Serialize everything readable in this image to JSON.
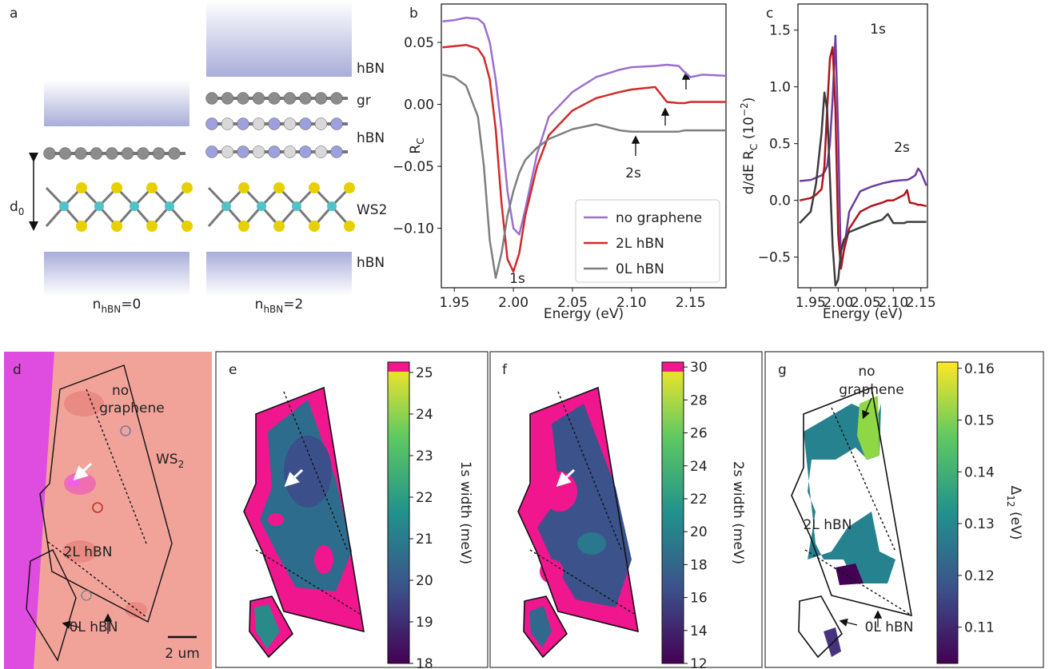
{
  "panel_labels": [
    "a",
    "b",
    "c",
    "d",
    "e",
    "f",
    "g"
  ],
  "panel_a": {
    "layers": [
      "hBN",
      "gr",
      "hBN",
      "WS2",
      "hBN"
    ],
    "spacing": [
      "d",
      "0"
    ],
    "left_stack": [
      "n",
      "hBN",
      "=0"
    ],
    "right_stack": [
      "n",
      "hBN",
      "=2"
    ]
  },
  "panel_d": {
    "labels": [
      "no",
      "graphene",
      "2L hBN",
      "0L hBN"
    ],
    "substrate": [
      "WS",
      "2"
    ],
    "scale_bar": "2 um"
  },
  "panel_g": {
    "labels": [
      "no",
      "graphene",
      "2L hBN",
      "0L hBN"
    ]
  },
  "chart_data": [
    {
      "type": "line",
      "xlabel": "Energy (eV)",
      "ylabel": [
        "R",
        "C"
      ],
      "xlim": [
        1.939,
        2.18
      ],
      "ylim": [
        -0.148,
        0.081
      ],
      "xticks": [
        1.95,
        {
          "value": 2,
          "label": "2.00"
        },
        2.05,
        {
          "value": 2.1,
          "label": "2.10"
        },
        2.15
      ],
      "yticks": [
        0.05,
        {
          "value": 0,
          "label": "0.00"
        },
        {
          "value": -0.05,
          "label": "−0.05"
        },
        {
          "value": -0.1,
          "label": "−0.10"
        }
      ],
      "legend": "lower right",
      "annotations": [
        "1s",
        "2s"
      ],
      "x": [
        1.94,
        1.95,
        1.96,
        1.97,
        1.975,
        1.98,
        1.985,
        1.99,
        1.995,
        2.0,
        2.005,
        2.01,
        2.02,
        2.03,
        2.05,
        2.07,
        2.09,
        2.1,
        2.12,
        2.13,
        2.14,
        2.145,
        2.15,
        2.16,
        2.18
      ],
      "series": [
        {
          "name": "no graphene",
          "color": "#9b6fcf",
          "values": [
            0.067,
            0.068,
            0.07,
            0.069,
            0.065,
            0.05,
            0.02,
            -0.02,
            -0.07,
            -0.1,
            -0.105,
            -0.085,
            -0.04,
            -0.01,
            0.01,
            0.022,
            0.028,
            0.03,
            0.031,
            0.032,
            0.031,
            0.026,
            0.022,
            0.024,
            0.023
          ]
        },
        {
          "name": "2L hBN",
          "color": "#d12a2a",
          "values": [
            0.046,
            0.047,
            0.048,
            0.045,
            0.038,
            0.02,
            -0.02,
            -0.08,
            -0.125,
            -0.135,
            -0.12,
            -0.09,
            -0.05,
            -0.025,
            -0.005,
            0.005,
            0.01,
            0.012,
            0.014,
            0.002,
            0.001,
            0.001,
            0.002,
            0.002,
            0.002
          ]
        },
        {
          "name": "0L hBN",
          "color": "#7f7f7f",
          "values": [
            0.024,
            0.022,
            0.015,
            -0.01,
            -0.05,
            -0.11,
            -0.14,
            -0.12,
            -0.09,
            -0.07,
            -0.055,
            -0.045,
            -0.035,
            -0.028,
            -0.02,
            -0.016,
            -0.021,
            -0.022,
            -0.022,
            -0.022,
            -0.022,
            -0.021,
            -0.021,
            -0.021,
            -0.021
          ]
        }
      ]
    },
    {
      "type": "line",
      "xlabel": "Energy (eV)",
      "ylabel": [
        "d/dE R",
        "C",
        " (10",
        "−2",
        ")"
      ],
      "xlim": [
        1.927,
        2.162
      ],
      "ylim": [
        -0.77,
        1.73
      ],
      "xticks": [
        1.95,
        {
          "value": 2,
          "label": "2.00"
        },
        2.05,
        {
          "value": 2.1,
          "label": "2.10"
        },
        2.15
      ],
      "yticks": [
        1.5,
        {
          "value": 1,
          "label": "1.0"
        },
        0.5,
        {
          "value": 0,
          "label": "0.0"
        },
        {
          "value": -0.5,
          "label": "−0.5"
        }
      ],
      "annotations": [
        "1s",
        "2s"
      ],
      "x": [
        1.93,
        1.95,
        1.96,
        1.97,
        1.975,
        1.98,
        1.985,
        1.99,
        1.995,
        2.0,
        2.005,
        2.01,
        2.02,
        2.04,
        2.06,
        2.08,
        2.09,
        2.1,
        2.12,
        2.125,
        2.13,
        2.14,
        2.145,
        2.15,
        2.16
      ],
      "series": [
        {
          "name": "no graphene",
          "color": "#6b3fa0",
          "values": [
            0.17,
            0.18,
            0.2,
            0.22,
            0.25,
            0.3,
            0.5,
            0.9,
            1.45,
            0.6,
            -0.6,
            -0.45,
            -0.1,
            0.08,
            0.12,
            0.15,
            0.16,
            0.17,
            0.18,
            0.18,
            0.19,
            0.22,
            0.28,
            0.25,
            0.13
          ]
        },
        {
          "name": "2L hBN",
          "color": "#b0141a",
          "values": [
            0.0,
            0.02,
            0.05,
            0.1,
            0.3,
            0.8,
            1.25,
            1.35,
            0.8,
            -0.3,
            -0.6,
            -0.45,
            -0.25,
            -0.1,
            -0.05,
            -0.02,
            0.0,
            0.0,
            0.05,
            0.09,
            -0.02,
            -0.03,
            -0.04,
            -0.04,
            -0.05
          ]
        },
        {
          "name": "0L hBN",
          "color": "#3d3d3d",
          "values": [
            -0.2,
            -0.1,
            0.15,
            0.6,
            0.95,
            0.8,
            0.2,
            -0.4,
            -0.75,
            -0.7,
            -0.45,
            -0.35,
            -0.28,
            -0.24,
            -0.2,
            -0.17,
            -0.12,
            -0.2,
            -0.2,
            -0.19,
            -0.19,
            -0.19,
            -0.19,
            -0.19,
            -0.19
          ]
        }
      ]
    },
    {
      "type": "colorbar",
      "ylabel": "1s width (meV)",
      "colormap": "viridis",
      "over_color": "#f0168e",
      "ylim": [
        18,
        25.25
      ],
      "yticks": [
        18,
        19,
        20,
        21,
        22,
        23,
        24,
        25
      ]
    },
    {
      "type": "colorbar",
      "ylabel": "2s width (meV)",
      "colormap": "viridis",
      "over_color": "#f0168e",
      "ylim": [
        12,
        30.3
      ],
      "yticks": [
        12,
        14,
        16,
        18,
        20,
        22,
        24,
        26,
        28,
        30
      ]
    },
    {
      "type": "colorbar",
      "ylabel": [
        "Δ",
        "12",
        " (eV)"
      ],
      "colormap": "viridis",
      "ylim": [
        0.103,
        0.1612
      ],
      "yticks": [
        0.11,
        0.12,
        0.13,
        0.14,
        0.15,
        0.16
      ]
    }
  ]
}
